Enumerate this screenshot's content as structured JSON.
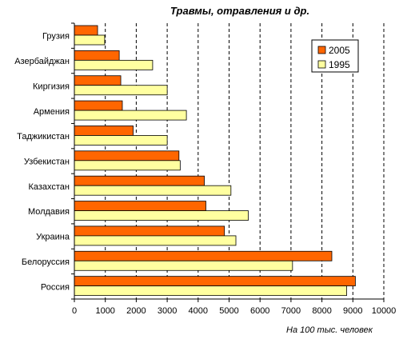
{
  "chart_data": {
    "type": "bar",
    "orientation": "horizontal",
    "title": "Травмы, отравления и др.",
    "xlabel": "На 100 тыс. человек",
    "ylabel": "",
    "xlim": [
      0,
      10000
    ],
    "x_ticks": [
      0,
      1000,
      2000,
      3000,
      4000,
      5000,
      6000,
      7000,
      8000,
      9000,
      10000
    ],
    "grid": "vertical dashed",
    "legend_position": "top-right",
    "categories": [
      "Грузия",
      "Азербайджан",
      "Киргизия",
      "Армения",
      "Таджикистан",
      "Узбекистан",
      "Казахстан",
      "Молдавия",
      "Украина",
      "Белоруссия",
      "Россия"
    ],
    "series": [
      {
        "name": "2005",
        "color": "#ff6600",
        "values": [
          750,
          1450,
          1500,
          1550,
          1900,
          3380,
          4200,
          4250,
          4850,
          8320,
          9080
        ]
      },
      {
        "name": "1995",
        "color": "#ffffa0",
        "values": [
          980,
          2530,
          3000,
          3620,
          3000,
          3420,
          5060,
          5620,
          5220,
          7050,
          8800
        ]
      }
    ]
  }
}
